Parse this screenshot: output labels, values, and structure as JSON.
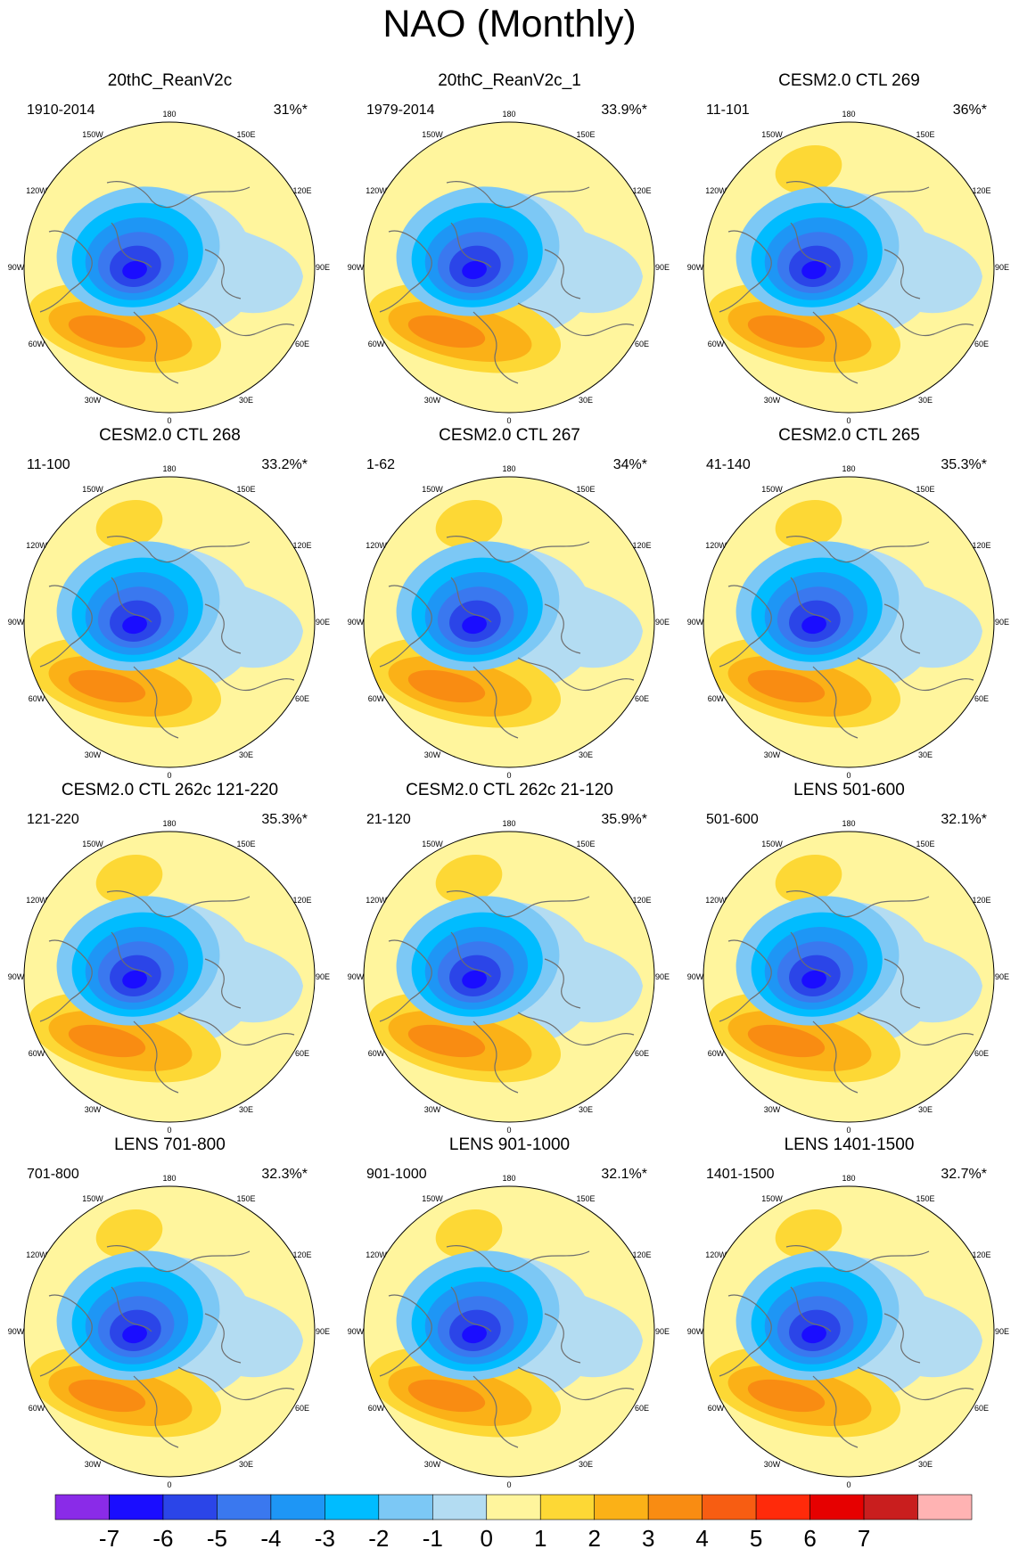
{
  "title": "NAO (Monthly)",
  "lon_labels": [
    "180",
    "150E",
    "120E",
    "90E",
    "60E",
    "30E",
    "0",
    "30W",
    "60W",
    "90W",
    "120W",
    "150W"
  ],
  "panels": [
    {
      "title": "20thC_ReanV2c",
      "years": "1910-2014",
      "pct": "31%*"
    },
    {
      "title": "20thC_ReanV2c_1",
      "years": "1979-2014",
      "pct": "33.9%*"
    },
    {
      "title": "CESM2.0 CTL 269",
      "years": "11-101",
      "pct": "36%*"
    },
    {
      "title": "CESM2.0 CTL 268",
      "years": "11-100",
      "pct": "33.2%*"
    },
    {
      "title": "CESM2.0 CTL 267",
      "years": "1-62",
      "pct": "34%*"
    },
    {
      "title": "CESM2.0 CTL 265",
      "years": "41-140",
      "pct": "35.3%*"
    },
    {
      "title": "CESM2.0 CTL 262c 121-220",
      "years": "121-220",
      "pct": "35.3%*"
    },
    {
      "title": "CESM2.0 CTL 262c 21-120",
      "years": "21-120",
      "pct": "35.9%*"
    },
    {
      "title": "LENS 501-600",
      "years": "501-600",
      "pct": "32.1%*"
    },
    {
      "title": "LENS 701-800",
      "years": "701-800",
      "pct": "32.3%*"
    },
    {
      "title": "LENS 901-1000",
      "years": "901-1000",
      "pct": "32.1%*"
    },
    {
      "title": "LENS 1401-1500",
      "years": "1401-1500",
      "pct": "32.7%*"
    }
  ],
  "colorbar": {
    "ticks": [
      "-7",
      "-6",
      "-5",
      "-4",
      "-3",
      "-2",
      "-1",
      "0",
      "1",
      "2",
      "3",
      "4",
      "5",
      "6",
      "7"
    ],
    "colors": [
      "#8a2be8",
      "#1a0dff",
      "#2b45e8",
      "#3a78ef",
      "#1e96f5",
      "#00bcff",
      "#7cc8f5",
      "#b3dcf2",
      "#fff59d",
      "#fdd835",
      "#fbb117",
      "#f98c12",
      "#f75d12",
      "#ff2a0a",
      "#e60000",
      "#c91e1e",
      "#ffb3b3"
    ]
  }
}
